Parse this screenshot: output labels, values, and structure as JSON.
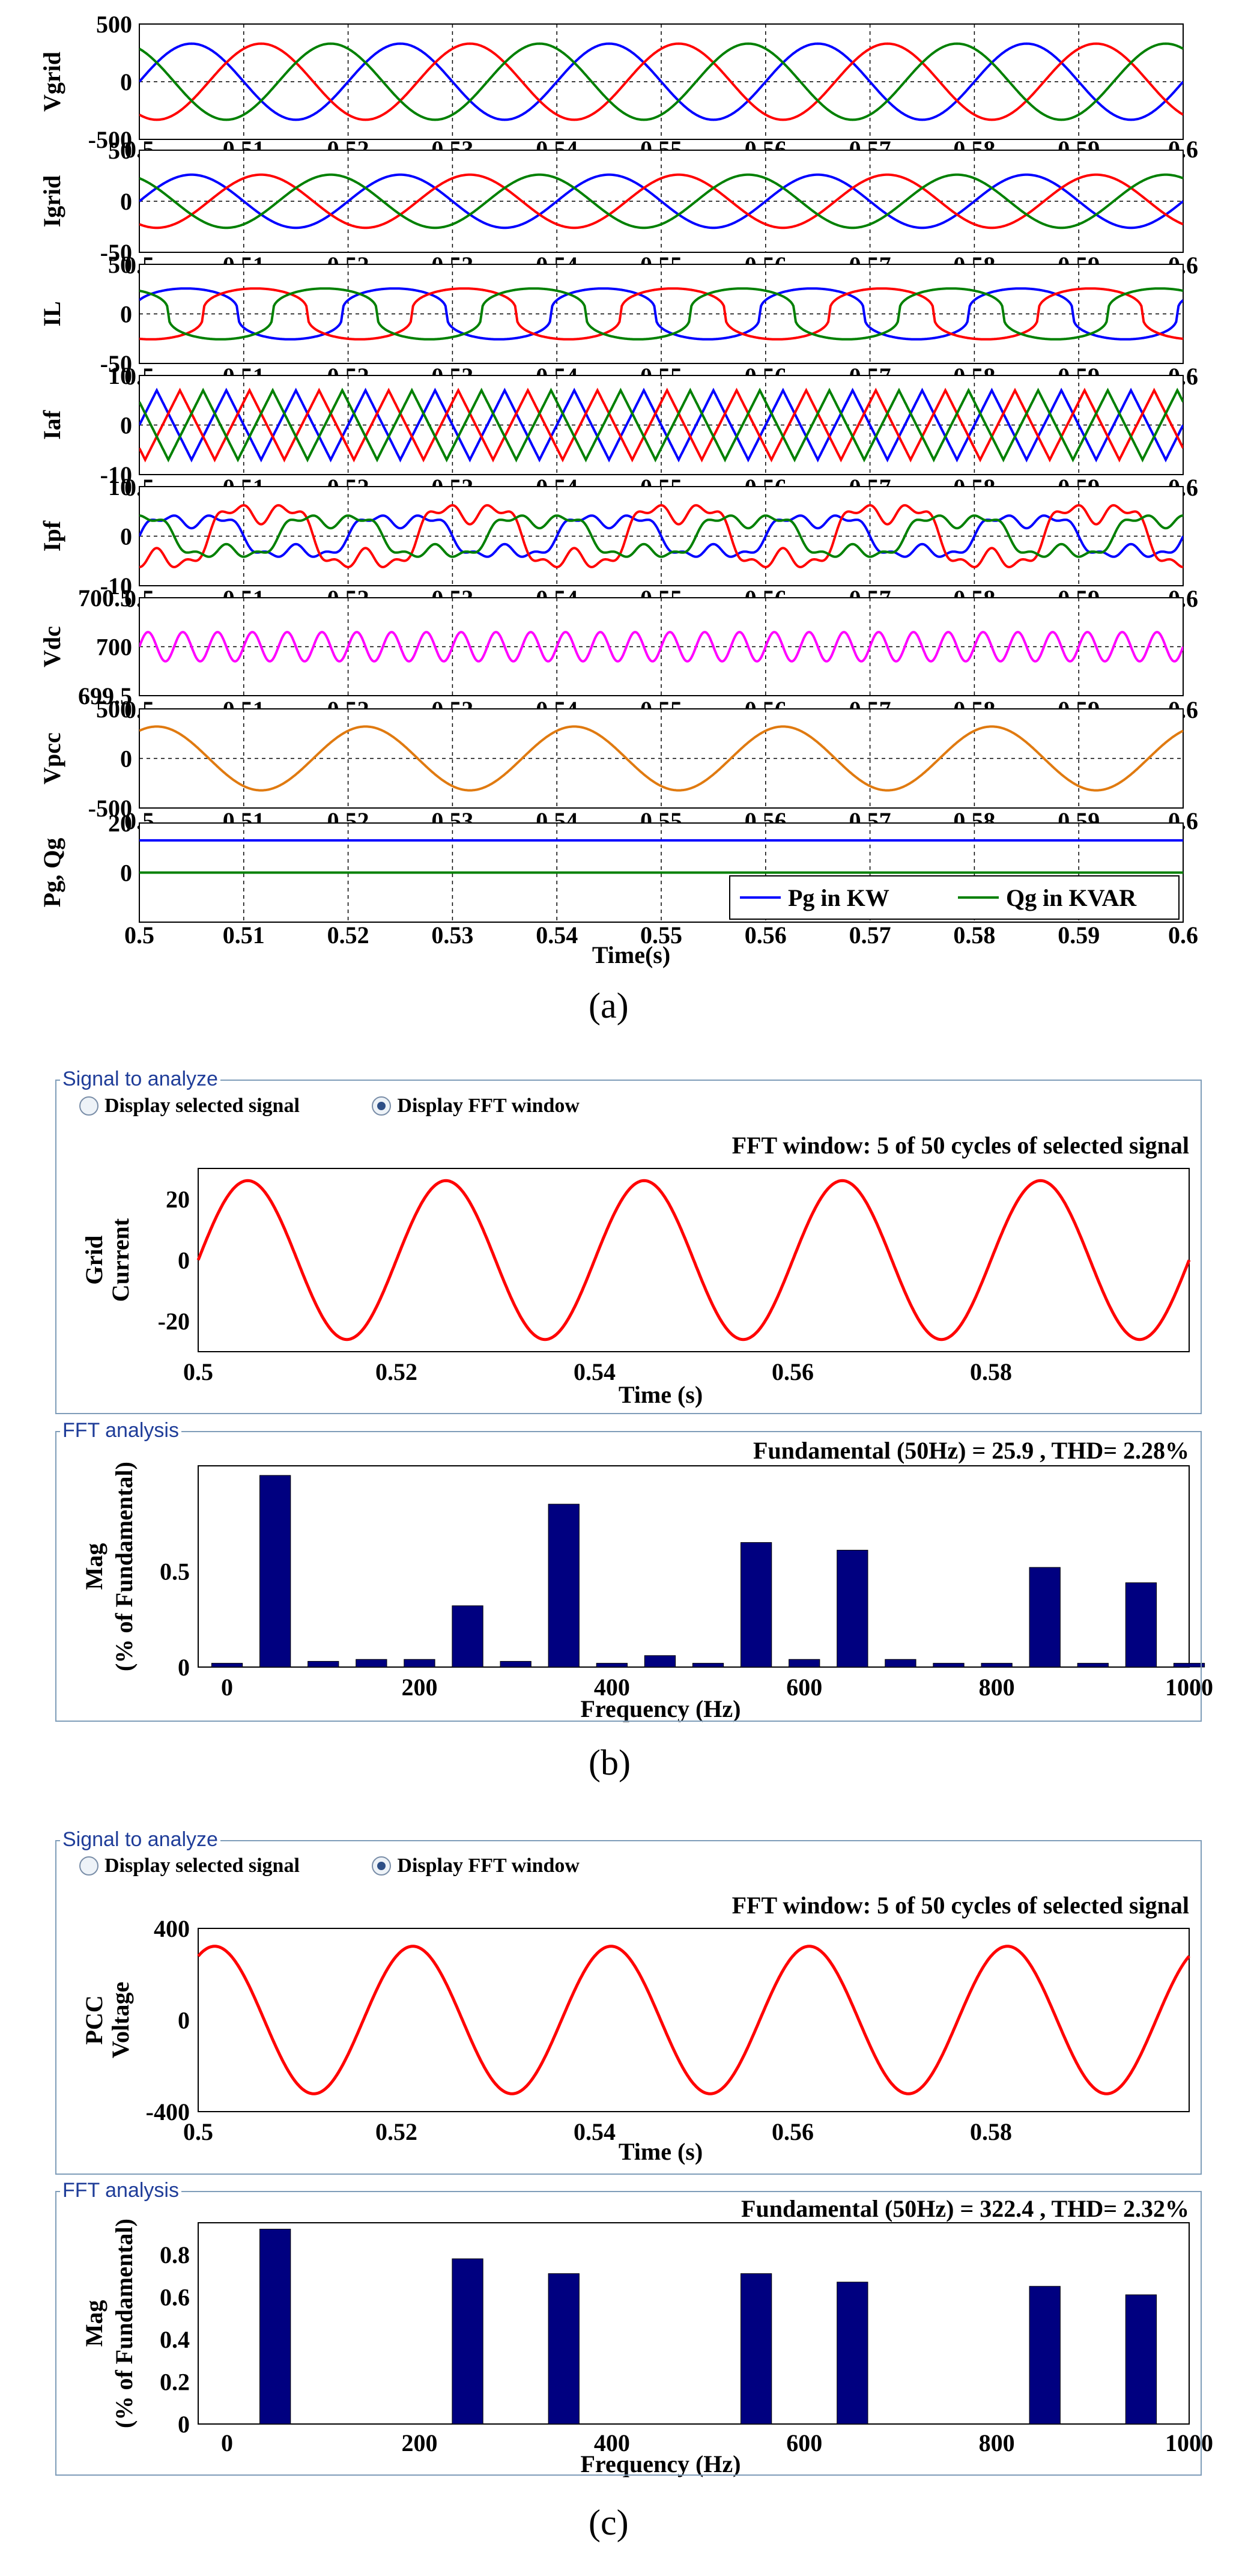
{
  "panel_labels": [
    "(a)",
    "(b)",
    "(c)"
  ],
  "colors": {
    "phase_a": "#0000ff",
    "phase_b": "#ff0000",
    "phase_c": "#008000",
    "vdc": "#ff00ff",
    "vpcc": "#e07a10",
    "fft_signal": "#ff0000",
    "fft_bar": "#000080",
    "group_title": "#1f3d99"
  },
  "panel_b": {
    "signal_box_title": "Signal to analyze",
    "radio_selected_signal": "Display selected signal",
    "radio_fft_window": "Display FFT window",
    "fft_window_title": "FFT window: 5 of 50 cycles of selected signal",
    "fft_box_title": "FFT analysis",
    "fft_result_title": "Fundamental (50Hz) = 25.9 , THD= 2.28%"
  },
  "panel_c": {
    "signal_box_title": "Signal to analyze",
    "radio_selected_signal": "Display selected signal",
    "radio_fft_window": "Display FFT window",
    "fft_window_title": "FFT window: 5 of 50 cycles of selected signal",
    "fft_box_title": "FFT analysis",
    "fft_result_title": "Fundamental (50Hz) = 322.4 , THD= 2.32%"
  },
  "chart_data": [
    {
      "type": "line",
      "id": "vgrid",
      "ylabel": "Vgrid",
      "ylim": [
        -500,
        500
      ],
      "yticks": [
        "500",
        "0",
        "-500"
      ],
      "xlim": [
        0.5,
        0.6
      ],
      "xticks": [
        "0.5",
        "0.51",
        "0.52",
        "0.53",
        "0.54",
        "0.55",
        "0.56",
        "0.57",
        "0.58",
        "0.59",
        "0.6"
      ],
      "grid": true,
      "frequency_hz": 50,
      "series": [
        {
          "amplitude": 330,
          "phase_deg": 0
        },
        {
          "amplitude": 330,
          "phase_deg": -120
        },
        {
          "amplitude": 330,
          "phase_deg": 120
        }
      ]
    },
    {
      "type": "line",
      "id": "igrid",
      "ylabel": "Igrid",
      "ylim": [
        -50,
        50
      ],
      "yticks": [
        "50",
        "0",
        "-50"
      ],
      "xlim": [
        0.5,
        0.6
      ],
      "xticks": [
        "0.5",
        "0.51",
        "0.52",
        "0.53",
        "0.54",
        "0.55",
        "0.56",
        "0.57",
        "0.58",
        "0.59",
        "0.6"
      ],
      "grid": true,
      "frequency_hz": 50,
      "series": [
        {
          "amplitude": 26,
          "phase_deg": 0
        },
        {
          "amplitude": 26,
          "phase_deg": -120
        },
        {
          "amplitude": 26,
          "phase_deg": 120
        }
      ]
    },
    {
      "type": "line",
      "id": "il",
      "ylabel": "IL",
      "ylim": [
        -50,
        50
      ],
      "yticks": [
        "50",
        "0",
        "-50"
      ],
      "xlim": [
        0.5,
        0.6
      ],
      "xticks": [
        "0.5",
        "0.51",
        "0.52",
        "0.53",
        "0.54",
        "0.55",
        "0.56",
        "0.57",
        "0.58",
        "0.59",
        "0.6"
      ],
      "grid": true,
      "frequency_hz": 50,
      "series": [
        {
          "amplitude": 27,
          "phase_deg": 10
        },
        {
          "amplitude": 27,
          "phase_deg": -110
        },
        {
          "amplitude": 27,
          "phase_deg": 130
        }
      ]
    },
    {
      "type": "line",
      "id": "iaf",
      "ylabel": "Iaf",
      "ylim": [
        -10,
        10
      ],
      "yticks": [
        "10",
        "0",
        "-10"
      ],
      "xlim": [
        0.5,
        0.6
      ],
      "xticks": [
        "0.5",
        "0.51",
        "0.52",
        "0.53",
        "0.54",
        "0.55",
        "0.56",
        "0.57",
        "0.58",
        "0.59",
        "0.6"
      ],
      "grid": true,
      "frequency_hz": 150,
      "series": [
        {
          "amplitude": 7,
          "phase_deg": 0
        },
        {
          "amplitude": 7,
          "phase_deg": -120
        },
        {
          "amplitude": 7,
          "phase_deg": 120
        }
      ]
    },
    {
      "type": "line",
      "id": "ipf",
      "ylabel": "Ipf",
      "ylim": [
        -10,
        10
      ],
      "yticks": [
        "10",
        "0",
        "-10"
      ],
      "xlim": [
        0.5,
        0.6
      ],
      "xticks": [
        "0.5",
        "0.51",
        "0.52",
        "0.53",
        "0.54",
        "0.55",
        "0.56",
        "0.57",
        "0.58",
        "0.59",
        "0.6"
      ],
      "grid": true,
      "frequency_hz": 50,
      "series": [
        {
          "amplitude": 4,
          "phase_deg": 0
        },
        {
          "amplitude": 6,
          "phase_deg": -120
        },
        {
          "amplitude": 4,
          "phase_deg": 120
        }
      ]
    },
    {
      "type": "line",
      "id": "vdc",
      "ylabel": "Vdc",
      "ylim": [
        699.5,
        700.5
      ],
      "yticks": [
        "700.5",
        "700",
        "699.5"
      ],
      "xlim": [
        0.5,
        0.6
      ],
      "xticks": [
        "0.5",
        "0.51",
        "0.52",
        "0.53",
        "0.54",
        "0.55",
        "0.56",
        "0.57",
        "0.58",
        "0.59",
        "0.6"
      ],
      "grid": true,
      "frequency_hz": 300,
      "series": [
        {
          "offset": 700,
          "amplitude": 0.15,
          "phase_deg": 0
        }
      ]
    },
    {
      "type": "line",
      "id": "vpcc",
      "ylabel": "Vpcc",
      "ylim": [
        -500,
        500
      ],
      "yticks": [
        "500",
        "0",
        "-500"
      ],
      "xlim": [
        0.5,
        0.6
      ],
      "xticks": [
        "0.5",
        "0.51",
        "0.52",
        "0.53",
        "0.54",
        "0.55",
        "0.56",
        "0.57",
        "0.58",
        "0.59",
        "0.6"
      ],
      "grid": true,
      "frequency_hz": 50,
      "series": [
        {
          "amplitude": 322,
          "phase_deg": 60
        }
      ]
    },
    {
      "type": "line",
      "id": "pq",
      "ylabel": "Pg, Qg",
      "ylim": [
        -20,
        20
      ],
      "yticks": [
        "20",
        "0"
      ],
      "xlim": [
        0.5,
        0.6
      ],
      "xticks": [
        "0.5",
        "0.51",
        "0.52",
        "0.53",
        "0.54",
        "0.55",
        "0.56",
        "0.57",
        "0.58",
        "0.59",
        "0.6"
      ],
      "grid": true,
      "xlabel": "Time(s)",
      "legend_position": "bottom-right",
      "series": [
        {
          "name": "Pg in KW",
          "value": 13
        },
        {
          "name": "Qg in KVAR",
          "value": 0
        }
      ]
    },
    {
      "type": "line",
      "id": "grid_current_window",
      "ylabel_lines": [
        "Grid",
        "Current"
      ],
      "xlabel": "Time (s)",
      "ylim": [
        -30,
        30
      ],
      "yticks": [
        "20",
        "0",
        "-20"
      ],
      "xlim": [
        0.5,
        0.6
      ],
      "xticks": [
        "0.5",
        "0.52",
        "0.54",
        "0.56",
        "0.58"
      ],
      "frequency_hz": 50,
      "series": [
        {
          "amplitude": 26,
          "phase_deg": 0
        }
      ]
    },
    {
      "type": "bar",
      "id": "grid_current_fft",
      "ylabel_lines": [
        "Mag",
        "(% of Fundamental)"
      ],
      "xlabel": "Frequency (Hz)",
      "ylim": [
        0,
        1.05
      ],
      "yticks": [
        "0.5",
        "0"
      ],
      "xlim": [
        -30,
        1000
      ],
      "xticks": [
        "0",
        "200",
        "400",
        "600",
        "800",
        "1000"
      ],
      "x": [
        0,
        50,
        100,
        150,
        200,
        250,
        300,
        350,
        400,
        450,
        500,
        550,
        600,
        650,
        700,
        750,
        800,
        850,
        900,
        950,
        1000
      ],
      "values": [
        0.02,
        1.0,
        0.03,
        0.04,
        0.04,
        0.32,
        0.03,
        0.85,
        0.02,
        0.06,
        0.02,
        0.65,
        0.04,
        0.61,
        0.04,
        0.02,
        0.02,
        0.52,
        0.02,
        0.44,
        0.02
      ]
    },
    {
      "type": "line",
      "id": "pcc_voltage_window",
      "ylabel_lines": [
        "PCC",
        "Voltage"
      ],
      "xlabel": "Time (s)",
      "ylim": [
        -400,
        400
      ],
      "yticks": [
        "400",
        "0",
        "-400"
      ],
      "xlim": [
        0.5,
        0.6
      ],
      "xticks": [
        "0.5",
        "0.52",
        "0.54",
        "0.56",
        "0.58"
      ],
      "frequency_hz": 50,
      "series": [
        {
          "amplitude": 322,
          "phase_deg": 60
        }
      ]
    },
    {
      "type": "bar",
      "id": "pcc_voltage_fft",
      "ylabel_lines": [
        "Mag",
        "(% of Fundamental)"
      ],
      "xlabel": "Frequency (Hz)",
      "ylim": [
        0,
        0.95
      ],
      "yticks": [
        "0.8",
        "0.6",
        "0.4",
        "0.2",
        "0"
      ],
      "xlim": [
        -30,
        1000
      ],
      "xticks": [
        "0",
        "200",
        "400",
        "600",
        "800",
        "1000"
      ],
      "x": [
        50,
        250,
        350,
        550,
        650,
        850,
        950
      ],
      "values": [
        0.92,
        0.78,
        0.71,
        0.71,
        0.67,
        0.65,
        0.61
      ]
    }
  ]
}
